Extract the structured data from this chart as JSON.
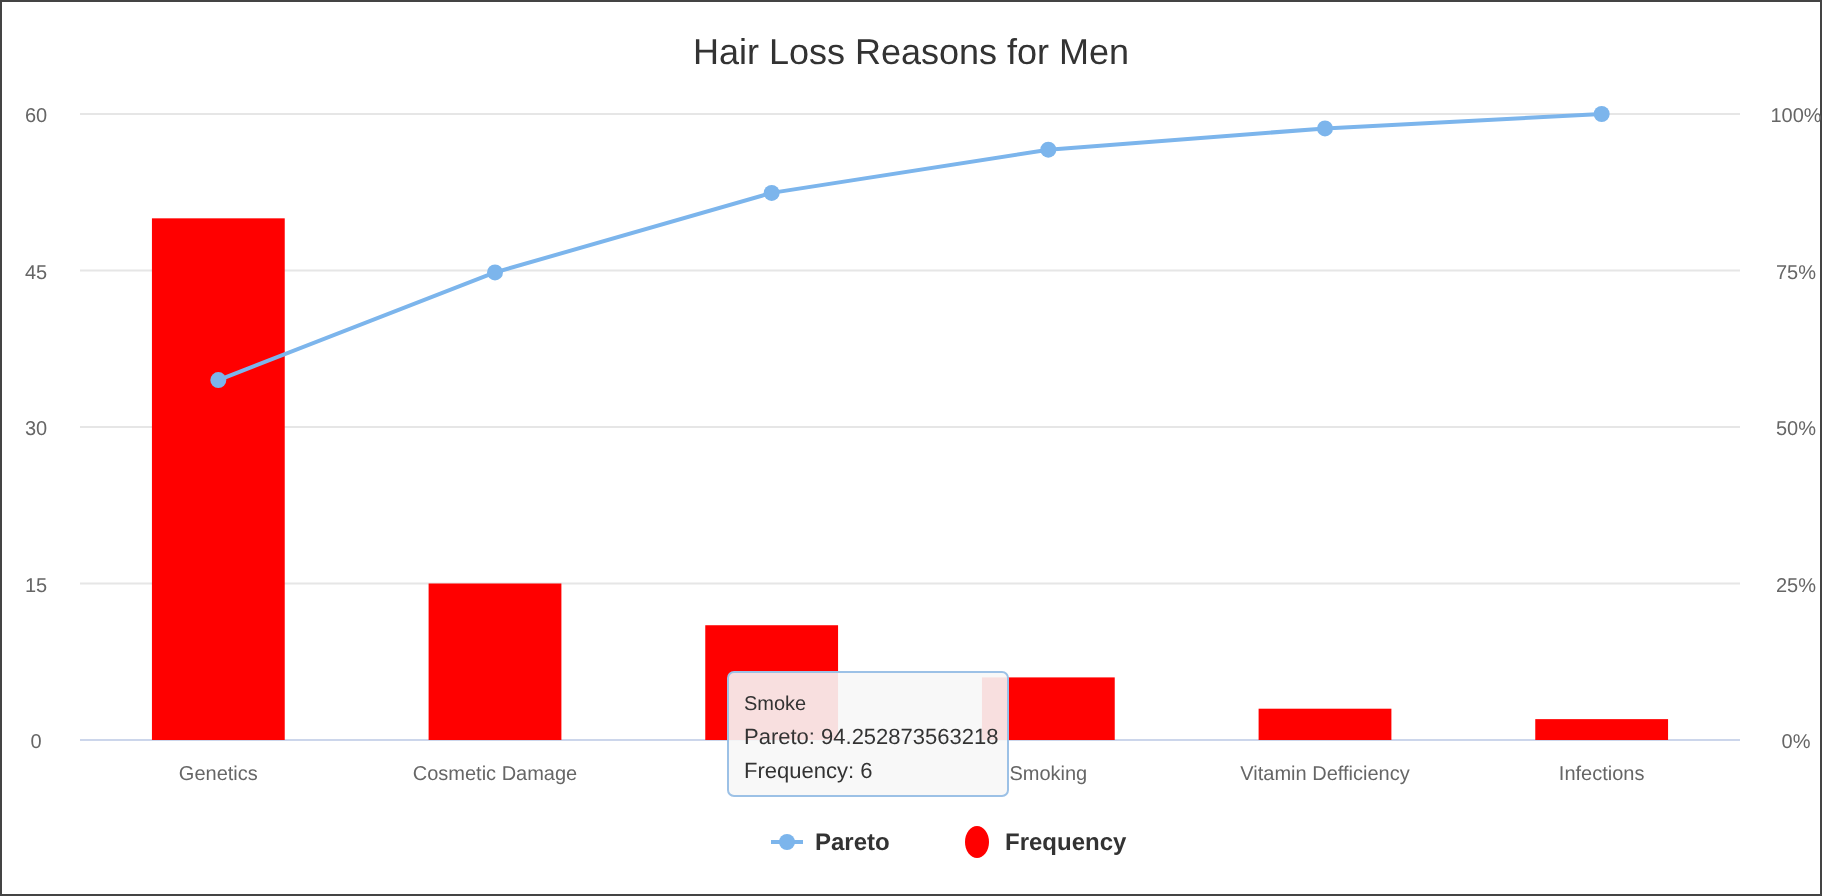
{
  "chart_data": {
    "type": "bar",
    "title": "Hair Loss Reasons for Men",
    "categories": [
      "Genetics",
      "Cosmetic Damage",
      null,
      "Smoking",
      "Vitamin Defficiency",
      "Infections"
    ],
    "series": [
      {
        "name": "Pareto",
        "type": "line",
        "axis": "y2",
        "color": "#7cb5ec",
        "values": [
          57.5,
          74.7,
          87.4,
          94.3,
          97.7,
          100
        ]
      },
      {
        "name": "Frequency",
        "color": "#ff0000",
        "values": [
          50,
          15,
          11,
          6,
          3,
          2
        ]
      }
    ],
    "ylim": [
      0,
      60
    ],
    "yticks": [
      0,
      15,
      30,
      45,
      60
    ],
    "y2lim": [
      0,
      100
    ],
    "y2ticks": [
      {
        "value": 0,
        "label": "0%"
      },
      {
        "value": 25,
        "label": "25%"
      },
      {
        "value": 50,
        "label": "50%"
      },
      {
        "value": 75,
        "label": "75%"
      },
      {
        "value": 100,
        "label": "100%"
      }
    ],
    "grid": "y",
    "legend": "bottom",
    "marker": "circle",
    "line_style": "solid",
    "annotations": [
      "Smoke",
      "Pareto: 94.252873563218",
      "Frequency: 6"
    ]
  }
}
